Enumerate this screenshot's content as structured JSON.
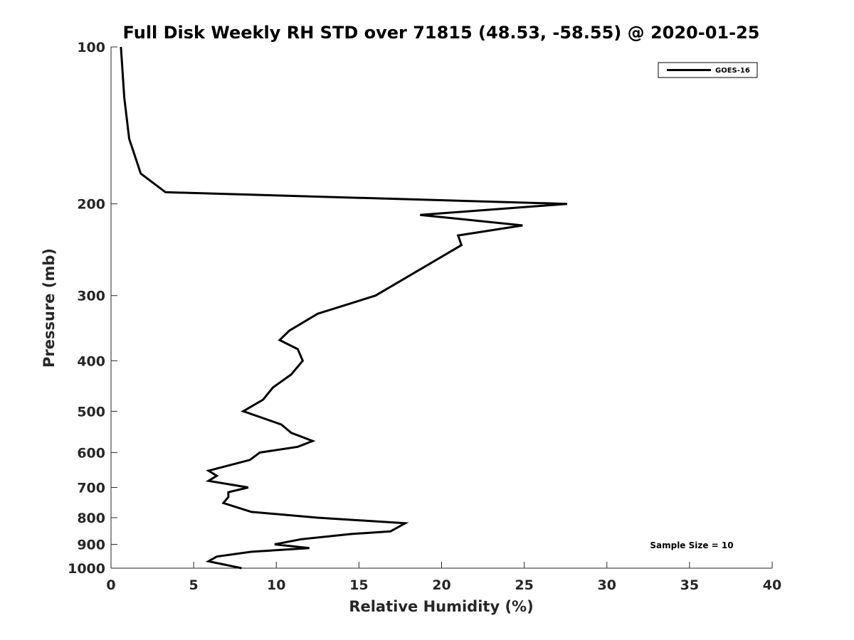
{
  "chart_data": {
    "type": "line",
    "title": "Full Disk Weekly RH STD over 71815 (48.53, -58.55) @ 2020-01-25",
    "xlabel": "Relative Humidity (%)",
    "ylabel": "Pressure (mb)",
    "xlim": [
      0,
      40
    ],
    "ylim": [
      100,
      1000
    ],
    "y_scale": "log",
    "y_reversed": true,
    "grid": false,
    "legend_position": "top-right",
    "x_ticks": [
      "0",
      "5",
      "10",
      "15",
      "20",
      "25",
      "30",
      "35",
      "40"
    ],
    "y_ticks": [
      "100",
      "200",
      "300",
      "400",
      "500",
      "600",
      "700",
      "800",
      "900",
      "1000"
    ],
    "annotation": "Sample Size = 10",
    "series": [
      {
        "name": "GOES-16",
        "color": "#000000",
        "points": [
          [
            0.6,
            100
          ],
          [
            0.8,
            125
          ],
          [
            1.1,
            150
          ],
          [
            1.8,
            175
          ],
          [
            3.3,
            190
          ],
          [
            27.6,
            200
          ],
          [
            18.7,
            210
          ],
          [
            24.9,
            220
          ],
          [
            21.0,
            230
          ],
          [
            21.2,
            240
          ],
          [
            16.0,
            300
          ],
          [
            12.5,
            325
          ],
          [
            10.8,
            350
          ],
          [
            10.2,
            365
          ],
          [
            11.3,
            380
          ],
          [
            11.6,
            400
          ],
          [
            10.9,
            425
          ],
          [
            9.8,
            450
          ],
          [
            9.2,
            475
          ],
          [
            8.0,
            500
          ],
          [
            10.3,
            530
          ],
          [
            10.9,
            550
          ],
          [
            12.2,
            570
          ],
          [
            11.3,
            585
          ],
          [
            9.0,
            600
          ],
          [
            8.4,
            620
          ],
          [
            5.9,
            650
          ],
          [
            6.4,
            665
          ],
          [
            5.9,
            680
          ],
          [
            8.3,
            700
          ],
          [
            7.1,
            715
          ],
          [
            7.1,
            730
          ],
          [
            6.8,
            750
          ],
          [
            8.5,
            780
          ],
          [
            12.5,
            800
          ],
          [
            17.8,
            820
          ],
          [
            16.9,
            850
          ],
          [
            14.5,
            860
          ],
          [
            11.5,
            880
          ],
          [
            9.9,
            900
          ],
          [
            12.0,
            915
          ],
          [
            8.5,
            930
          ],
          [
            6.4,
            950
          ],
          [
            5.9,
            970
          ],
          [
            7.9,
            1000
          ]
        ]
      }
    ]
  }
}
